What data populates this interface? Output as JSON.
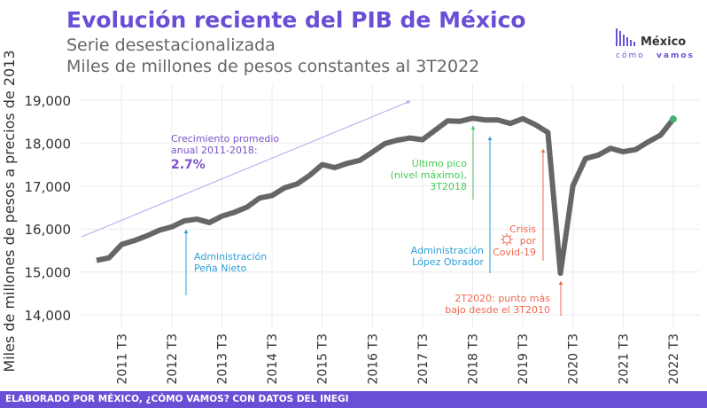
{
  "header": {
    "title": "Evolución reciente del PIB de México",
    "subtitle1": "Serie desestacionalizada",
    "subtitle2": "Miles de millones de pesos constantes al 3T2022"
  },
  "logo": {
    "line1": "México",
    "line2a": "cómo",
    "line2b": "vamos"
  },
  "footer": "ELABORADO POR MÉXICO, ¿CÓMO VAMOS? CON DATOS DEL INEGI",
  "colors": {
    "title": "#6a4fd6",
    "line": "#666666",
    "last_point": "#3cb371",
    "growth": "#7b52c9",
    "pena": "#2a9fd6",
    "amlo": "#2a9fd6",
    "peak": "#44cc55",
    "covid": "#f0684e"
  },
  "chart_data": {
    "type": "line",
    "ylabel": "Miles de millones de pesos a precios de 2013",
    "ylim": [
      14000,
      19000
    ],
    "yticks": [
      14000,
      15000,
      16000,
      17000,
      18000,
      19000
    ],
    "ytick_labels": [
      "14,000",
      "15,000",
      "16,000",
      "17,000",
      "18,000",
      "19,000"
    ],
    "xtick_labels": [
      "2011 T3",
      "2012 T3",
      "2013 T3",
      "2014 T3",
      "2015 T3",
      "2016 T3",
      "2017 T3",
      "2018 T3",
      "2019 T3",
      "2020 T3",
      "2021 T3",
      "2022 T3"
    ],
    "grid": true,
    "x_start": "2011 T1",
    "values": [
      15270,
      15330,
      15640,
      15730,
      15840,
      15970,
      16050,
      16190,
      16230,
      16150,
      16300,
      16390,
      16510,
      16720,
      16780,
      16960,
      17050,
      17250,
      17500,
      17430,
      17530,
      17600,
      17790,
      17990,
      18070,
      18120,
      18080,
      18300,
      18520,
      18510,
      18580,
      18540,
      18540,
      18460,
      18570,
      18430,
      18250,
      14970,
      17010,
      17640,
      17720,
      17880,
      17800,
      17850,
      18030,
      18190,
      18560
    ],
    "annotations": {
      "growth": {
        "line1": "Crecimiento promedio",
        "line2": "anual 2011-2018:",
        "value": "2.7%"
      },
      "pena": {
        "line1": "Administración",
        "line2": "Peña Nieto"
      },
      "amlo": {
        "line1": "Administración",
        "line2": "López Obrador"
      },
      "peak": {
        "line1": "Último pico",
        "line2": "(nivel máximo),",
        "line3": "3T2018"
      },
      "covid": {
        "line1": "Crisis",
        "line2": "por",
        "line3": "Covid-19"
      },
      "low": {
        "line1": "2T2020: punto más",
        "line2": "bajo desde el 3T2010"
      }
    }
  }
}
